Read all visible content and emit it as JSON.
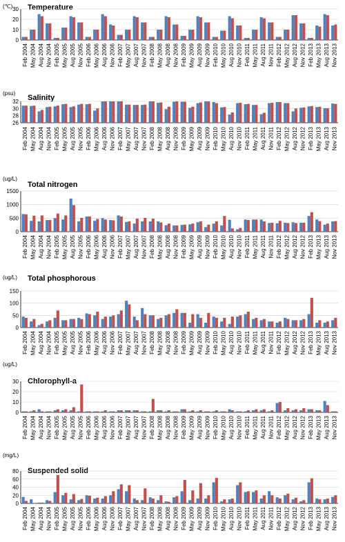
{
  "colors": {
    "series_a": "#4f81bd",
    "series_b": "#c0504d",
    "axis": "#000000",
    "grid": "#d0d0d0"
  },
  "chart_data": [
    {
      "type": "bar",
      "title": "Temperature",
      "ylabel": "(℃)",
      "ylim": [
        0,
        30
      ],
      "yticks": [
        0,
        10,
        20,
        30
      ],
      "categories": [
        "Feb 2004",
        "May 2004",
        "Aug 2004",
        "Nov 2004",
        "Feb 2005",
        "May 2005",
        "Aug 2005",
        "Nov 2005",
        "Feb 2006",
        "May 2006",
        "Aug 2006",
        "Nov 2006",
        "Feb 2007",
        "May 2007",
        "Aug 2007",
        "Nov 2007",
        "Feb 2008",
        "May 2008",
        "Aug 2008",
        "Nov 2008",
        "Feb 2009",
        "May 2009",
        "Aug 2009",
        "Nov 2009",
        "Feb 2010",
        "May 2010",
        "Aug 2010",
        "Nov 2010",
        "Feb 2011",
        "May 2011",
        "Aug 2011",
        "Nov 2011",
        "Feb 2012",
        "May 2012",
        "Aug 2012",
        "Nov 2012",
        "Feb 2013",
        "May 2013",
        "Aug 2013",
        "Nov 2013"
      ],
      "series": [
        {
          "values": [
            3,
            10,
            25,
            16,
            2,
            12,
            23,
            17,
            3,
            10,
            25,
            15,
            5,
            10,
            23,
            17,
            3,
            10,
            23,
            15,
            4,
            10,
            23,
            17,
            3,
            9,
            23,
            14,
            2,
            10,
            22,
            17,
            3,
            10,
            24,
            16,
            2,
            14,
            25,
            14
          ]
        },
        {
          "values": [
            3,
            10,
            23,
            16,
            2,
            12,
            22,
            17,
            3,
            10,
            23,
            14,
            5,
            10,
            22,
            17,
            3,
            10,
            22,
            15,
            4,
            10,
            22,
            17,
            3,
            9,
            21,
            14,
            2,
            10,
            21,
            17,
            3,
            10,
            24,
            16,
            2,
            13,
            24,
            15
          ]
        }
      ]
    },
    {
      "type": "bar",
      "title": "Salinity",
      "ylabel": "(psu)",
      "ylim": [
        26,
        32
      ],
      "yticks": [
        26,
        28,
        30,
        32
      ],
      "categories": [
        "Feb 2004",
        "May 2004",
        "Aug 2004",
        "Nov 2004",
        "Feb 2005",
        "May 2005",
        "Aug 2005",
        "Nov 2005",
        "Feb 2006",
        "May 2006",
        "Aug 2006",
        "Nov 2006",
        "Feb 2007",
        "May 2007",
        "Aug 2007",
        "Nov 2007",
        "Feb 2008",
        "May 2008",
        "Aug 2008",
        "Nov 2008",
        "Feb 2009",
        "May 2009",
        "Aug 2009",
        "Nov 2009",
        "Feb 2010",
        "May 2010",
        "Aug 2010",
        "Nov 2010",
        "Feb 2011",
        "May 2011",
        "Aug 2011",
        "Nov 2011",
        "Feb 2012",
        "May 2012",
        "Aug 2012",
        "Nov 2012",
        "Feb 2013",
        "May 2013",
        "Aug 2013",
        "Nov 2013"
      ],
      "series": [
        {
          "values": [
            30.8,
            30.7,
            29.2,
            30.4,
            30.6,
            31.2,
            30.4,
            31.1,
            31.2,
            29.4,
            32.1,
            32.0,
            32.0,
            31.1,
            31.0,
            31.0,
            32.2,
            31.6,
            29.8,
            31.9,
            31.9,
            30.2,
            31.5,
            32.3,
            31.8,
            30.3,
            28.3,
            31.5,
            31.2,
            31.0,
            28.4,
            31.5,
            31.8,
            31.5,
            29.2,
            30.2,
            30.6,
            30.4,
            30.1,
            31.4
          ]
        },
        {
          "values": [
            30.8,
            30.8,
            29.6,
            30.5,
            30.8,
            31.3,
            30.6,
            31.3,
            31.3,
            30.0,
            32.1,
            32.1,
            32.1,
            31.1,
            31.0,
            31.1,
            32.2,
            31.7,
            30.5,
            32.0,
            31.9,
            30.5,
            31.7,
            32.3,
            31.5,
            30.4,
            28.9,
            31.6,
            31.3,
            31.0,
            28.8,
            31.6,
            31.8,
            31.5,
            30.0,
            30.3,
            30.7,
            30.5,
            30.1,
            31.3
          ]
        }
      ]
    },
    {
      "type": "bar",
      "title": "Total nitrogen",
      "ylabel": "(ug/L)",
      "ylim": [
        0,
        1500
      ],
      "yticks": [
        0,
        500,
        1000,
        1500
      ],
      "categories": [
        "Feb 2004",
        "May 2004",
        "Aug 2004",
        "Nov 2004",
        "Feb 2005",
        "May 2005",
        "Aug 2005",
        "Nov 2005",
        "Feb 2006",
        "May 2006",
        "Aug 2006",
        "Nov 2006",
        "Feb 2007",
        "May 2007",
        "Aug 2007",
        "Nov 2007",
        "Feb 2008",
        "May 2008",
        "Aug 2008",
        "Nov 2008",
        "Feb 2009",
        "May 2009",
        "Aug 2009",
        "Nov 2009",
        "Feb 2010",
        "May 2010",
        "Aug 2010",
        "Nov 2010",
        "Feb 2011",
        "May 2011",
        "Aug 2011",
        "Nov 2011",
        "Feb 2012",
        "May 2012",
        "Aug 2012",
        "Nov 2012",
        "Feb 2013",
        "May 2013",
        "Aug 2013",
        "Nov 2013"
      ],
      "series": [
        {
          "values": [
            650,
            400,
            380,
            430,
            500,
            450,
            1220,
            380,
            560,
            400,
            500,
            430,
            600,
            360,
            300,
            380,
            380,
            380,
            240,
            230,
            250,
            270,
            350,
            170,
            300,
            230,
            440,
            90,
            450,
            450,
            450,
            320,
            310,
            330,
            350,
            330,
            580,
            450,
            260,
            380
          ]
        },
        {
          "values": [
            640,
            590,
            600,
            430,
            670,
            600,
            980,
            510,
            560,
            470,
            450,
            420,
            560,
            380,
            480,
            510,
            480,
            340,
            300,
            230,
            260,
            300,
            380,
            260,
            380,
            580,
            120,
            140,
            430,
            450,
            380,
            330,
            400,
            320,
            320,
            330,
            720,
            390,
            300,
            390
          ]
        }
      ]
    },
    {
      "type": "bar",
      "title": "Total phosphorous",
      "ylabel": "(ug/L)",
      "ylim": [
        0,
        150
      ],
      "yticks": [
        0,
        50,
        100,
        150
      ],
      "categories": [
        "Feb 2004",
        "May 2004",
        "Aug 2004",
        "Nov 2004",
        "Feb 2005",
        "May 2005",
        "Aug 2005",
        "Nov 2005",
        "Feb 2006",
        "May 2006",
        "Aug 2006",
        "Nov 2006",
        "Feb 2007",
        "May 2007",
        "Aug 2007",
        "Nov 2007",
        "Feb 2008",
        "May 2008",
        "Aug 2008",
        "Nov 2008",
        "Feb 2009",
        "May 2009",
        "Aug 2009",
        "Nov 2009",
        "Feb 2010",
        "May 2010",
        "Aug 2010",
        "Nov 2010",
        "Feb 2011",
        "May 2011",
        "Aug 2011",
        "Nov 2011",
        "Feb 2012",
        "May 2012",
        "Aug 2012",
        "Nov 2012",
        "Feb 2013",
        "May 2013",
        "Aug 2013",
        "Nov 2013"
      ],
      "series": [
        {
          "values": [
            45,
            25,
            10,
            25,
            40,
            30,
            35,
            40,
            58,
            50,
            35,
            45,
            55,
            110,
            45,
            80,
            50,
            35,
            50,
            60,
            60,
            20,
            55,
            20,
            45,
            25,
            15,
            45,
            55,
            35,
            30,
            25,
            20,
            40,
            30,
            30,
            55,
            20,
            20,
            30
          ]
        },
        {
          "values": [
            40,
            35,
            15,
            30,
            70,
            30,
            35,
            35,
            55,
            65,
            45,
            50,
            70,
            95,
            30,
            55,
            50,
            40,
            55,
            75,
            60,
            55,
            40,
            60,
            40,
            40,
            45,
            50,
            65,
            40,
            35,
            25,
            25,
            35,
            30,
            35,
            122,
            30,
            25,
            40
          ]
        }
      ]
    },
    {
      "type": "bar",
      "title": "Chlorophyll-a",
      "ylabel": "(ug/L)",
      "ylim": [
        0,
        30
      ],
      "yticks": [
        0,
        10,
        20,
        30
      ],
      "categories": [
        "Feb 2004",
        "May 2004",
        "Aug 2004",
        "Nov 2004",
        "Feb 2005",
        "May 2005",
        "Aug 2005",
        "Nov 2005",
        "Feb 2006",
        "May 2006",
        "Aug 2006",
        "Nov 2006",
        "Feb 2007",
        "May 2007",
        "Aug 2007",
        "Nov 2007",
        "Feb 2008",
        "May 2008",
        "Aug 2008",
        "Nov 2008",
        "Feb 2009",
        "May 2009",
        "Aug 2009",
        "Nov 2009",
        "Feb 2010",
        "May 2010",
        "Aug 2010",
        "Nov 2010",
        "Feb 2011",
        "May 2011",
        "Aug 2011",
        "Nov 2011",
        "Feb 2012",
        "May 2012",
        "Aug 2012",
        "Nov 2012",
        "Feb 2013",
        "May 2013",
        "Aug 2013",
        "Nov 2013"
      ],
      "series": [
        {
          "values": [
            1,
            1,
            3,
            1,
            2,
            2,
            2,
            1,
            1,
            1,
            1,
            1,
            2,
            2,
            2,
            1,
            1,
            2,
            1,
            1,
            3,
            1,
            1,
            1,
            1,
            1,
            3,
            1,
            1,
            2,
            2,
            1,
            9,
            2,
            2,
            2,
            3,
            2,
            11,
            1
          ]
        },
        {
          "values": [
            1,
            2,
            1,
            1,
            3,
            3,
            5,
            27,
            1,
            1,
            2,
            1,
            2,
            2,
            2,
            1,
            13,
            2,
            2,
            1,
            3,
            2,
            2,
            1,
            2,
            1,
            2,
            1,
            2,
            3,
            3,
            2,
            10,
            4,
            3,
            4,
            3,
            2,
            7,
            1
          ]
        }
      ]
    },
    {
      "type": "bar",
      "title": "Suspended solid",
      "ylabel": "(mg/L)",
      "ylim": [
        0,
        80
      ],
      "yticks": [
        0,
        20,
        40,
        60,
        80
      ],
      "categories": [
        "Feb 2004",
        "May 2004",
        "Aug 2004",
        "Nov 2004",
        "Feb 2005",
        "May 2005",
        "Aug 2005",
        "Nov 2005",
        "Feb 2006",
        "May 2006",
        "Aug 2006",
        "Nov 2006",
        "Feb 2007",
        "May 2007",
        "Aug 2007",
        "Nov 2007",
        "Feb 2008",
        "May 2008",
        "Aug 2008",
        "Nov 2008",
        "Feb 2009",
        "May 2009",
        "Aug 2009",
        "Nov 2009",
        "Feb 2010",
        "May 2010",
        "Aug 2010",
        "Nov 2010",
        "Feb 2011",
        "May 2011",
        "Aug 2011",
        "Nov 2011",
        "Feb 2012",
        "May 2012",
        "Aug 2012",
        "Nov 2012",
        "Feb 2013",
        "May 2013",
        "Aug 2013",
        "Nov 2013"
      ],
      "series": [
        {
          "values": [
            16,
            10,
            2,
            8,
            28,
            20,
            10,
            8,
            20,
            12,
            12,
            20,
            35,
            30,
            12,
            8,
            15,
            8,
            5,
            15,
            30,
            8,
            12,
            12,
            52,
            5,
            10,
            45,
            28,
            28,
            12,
            30,
            15,
            20,
            10,
            5,
            52,
            12,
            10,
            16
          ]
        },
        {
          "values": [
            6,
            1,
            2,
            6,
            70,
            26,
            23,
            11,
            19,
            14,
            18,
            30,
            47,
            45,
            8,
            37,
            12,
            20,
            4,
            18,
            58,
            32,
            50,
            20,
            63,
            10,
            12,
            52,
            30,
            32,
            20,
            20,
            12,
            24,
            14,
            8,
            62,
            10,
            12,
            20
          ]
        }
      ]
    }
  ]
}
